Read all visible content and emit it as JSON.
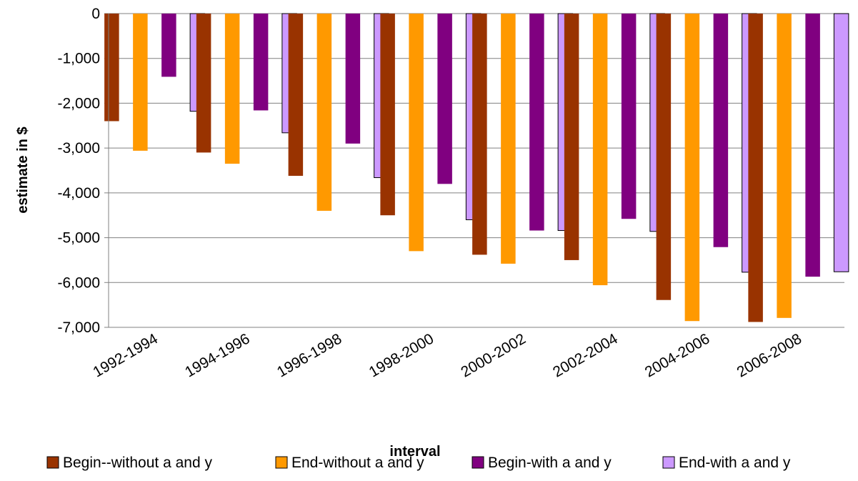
{
  "chart_data": {
    "type": "bar",
    "title": "",
    "xlabel": "interval",
    "ylabel": "estimate in $",
    "ylim": [
      -7000,
      0
    ],
    "yticks": [
      0,
      -1000,
      -2000,
      -3000,
      -4000,
      -5000,
      -6000,
      -7000
    ],
    "ytick_labels": [
      "0",
      "-1,000",
      "-2,000",
      "-3,000",
      "-4,000",
      "-5,000",
      "-6,000",
      "-7,000"
    ],
    "grid": true,
    "legend_position": "bottom",
    "categories": [
      "1992-1994",
      "1994-1996",
      "1996-1998",
      "1998-2000",
      "2000-2002",
      "2002-2004",
      "2004-2006",
      "2006-2008"
    ],
    "series": [
      {
        "name": "Begin--without a and y",
        "color": "#993300",
        "values": [
          -2400,
          -3100,
          -3620,
          -4500,
          -5380,
          -5500,
          -6390,
          -6880
        ]
      },
      {
        "name": "End-without a and y",
        "color": "#FF9900",
        "values": [
          -3060,
          -3350,
          -4400,
          -5300,
          -5580,
          -6060,
          -6860,
          -6790
        ]
      },
      {
        "name": "Begin-with a and y",
        "color": "#800080",
        "values": [
          -1410,
          -2160,
          -2900,
          -3800,
          -4840,
          -4580,
          -5210,
          -5870
        ]
      },
      {
        "name": "End-with a and y",
        "color": "#CC99FF",
        "values": [
          -2180,
          -2660,
          -3660,
          -4600,
          -4840,
          -4860,
          -5770,
          -5760
        ]
      }
    ]
  }
}
